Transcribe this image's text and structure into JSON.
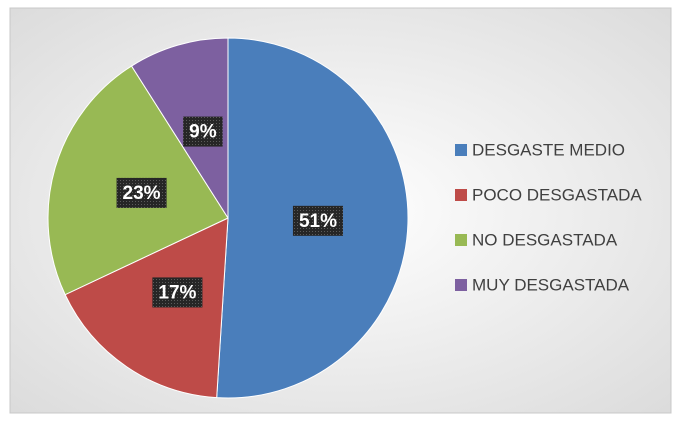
{
  "chart_data": {
    "type": "pie",
    "categories": [
      "DESGASTE MEDIO",
      "POCO DESGASTADA",
      "NO DESGASTADA",
      "MUY DESGASTADA"
    ],
    "values": [
      51,
      17,
      23,
      9
    ],
    "value_labels": [
      "51%",
      "17%",
      "23%",
      "9%"
    ],
    "colors": [
      "#4a7ebb",
      "#be4b48",
      "#98b954",
      "#7d60a0"
    ],
    "legend": "right"
  }
}
